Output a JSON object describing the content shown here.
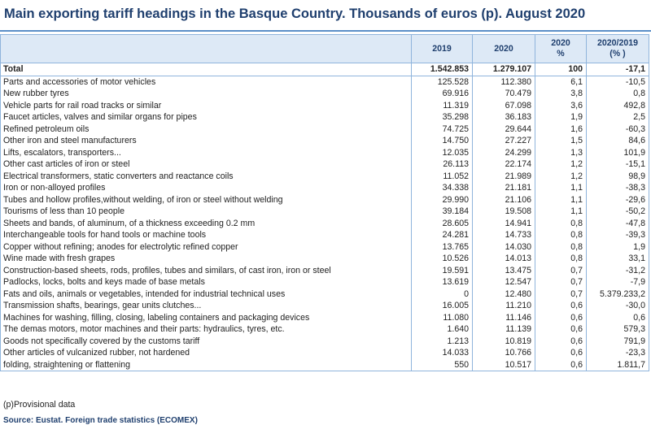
{
  "title": "Main exporting tariff headings in the Basque Country. Thousands of euros (p). August 2020",
  "table": {
    "header": [
      [],
      [
        "2019"
      ],
      [
        "2020"
      ],
      [
        "2020",
        "%"
      ],
      [
        "2020/2019",
        "(% )"
      ]
    ],
    "rows": [
      [
        "Total",
        "1.542.853",
        "1.279.107",
        "100",
        "-17,1"
      ],
      [
        "Parts and accessories of motor vehicles",
        "125.528",
        "112.380",
        "6,1",
        "-10,5"
      ],
      [
        "New rubber tyres",
        "69.916",
        "70.479",
        "3,8",
        "0,8"
      ],
      [
        "Vehicle parts for rail road tracks or similar",
        "11.319",
        "67.098",
        "3,6",
        "492,8"
      ],
      [
        "Faucet articles, valves and similar organs for pipes",
        "35.298",
        "36.183",
        "1,9",
        "2,5"
      ],
      [
        "Refined petroleum oils",
        "74.725",
        "29.644",
        "1,6",
        "-60,3"
      ],
      [
        "Other iron and steel manufacturers",
        "14.750",
        "27.227",
        "1,5",
        "84,6"
      ],
      [
        "Lifts, escalators, transporters...",
        "12.035",
        "24.299",
        "1,3",
        "101,9"
      ],
      [
        "Other cast articles of iron or steel",
        "26.113",
        "22.174",
        "1,2",
        "-15,1"
      ],
      [
        "Electrical transformers, static converters and reactance coils",
        "11.052",
        "21.989",
        "1,2",
        "98,9"
      ],
      [
        "Iron or non-alloyed profiles",
        "34.338",
        "21.181",
        "1,1",
        "-38,3"
      ],
      [
        "Tubes and hollow profiles,without welding, of iron or steel without welding",
        "29.990",
        "21.106",
        "1,1",
        "-29,6"
      ],
      [
        "Tourisms of less than 10 people",
        "39.184",
        "19.508",
        "1,1",
        "-50,2"
      ],
      [
        "Sheets and bands, of aluminum, of a thickness exceeding 0.2 mm",
        "28.605",
        "14.941",
        "0,8",
        "-47,8"
      ],
      [
        "Interchangeable tools for hand tools or machine tools",
        "24.281",
        "14.733",
        "0,8",
        "-39,3"
      ],
      [
        "Copper without refining; anodes for electrolytic refined copper",
        "13.765",
        "14.030",
        "0,8",
        "1,9"
      ],
      [
        "Wine made with fresh grapes",
        "10.526",
        "14.013",
        "0,8",
        "33,1"
      ],
      [
        "Construction-based sheets, rods, profiles, tubes and similars, of cast iron, iron or steel",
        "19.591",
        "13.475",
        "0,7",
        "-31,2"
      ],
      [
        "Padlocks, locks, bolts and keys made of base metals",
        "13.619",
        "12.547",
        "0,7",
        "-7,9"
      ],
      [
        "Fats and oils, animals or vegetables, intended for industrial technical uses",
        "0",
        "12.480",
        "0,7",
        "5.379.233,2"
      ],
      [
        "Transmission shafts, bearings, gear units clutches...",
        "16.005",
        "11.210",
        "0,6",
        "-30,0"
      ],
      [
        "Machines for washing, filling, closing, labeling containers and packaging devices",
        "11.080",
        "11.146",
        "0,6",
        "0,6"
      ],
      [
        "The demas motors, motor machines and their parts: hydraulics, tyres, etc.",
        "1.640",
        "11.139",
        "0,6",
        "579,3"
      ],
      [
        "Goods not specifically covered by the customs tariff",
        "1.213",
        "10.819",
        "0,6",
        "791,9"
      ],
      [
        "Other articles of vulcanized rubber, not hardened",
        "14.033",
        "10.766",
        "0,6",
        "-23,3"
      ],
      [
        "folding, straightening or flattening",
        "550",
        "10.517",
        "0,6",
        "1.811,7"
      ]
    ]
  },
  "note": "(p)Provisional data",
  "source": "Source: Eustat. Foreign trade statistics (ECOMEX)"
}
